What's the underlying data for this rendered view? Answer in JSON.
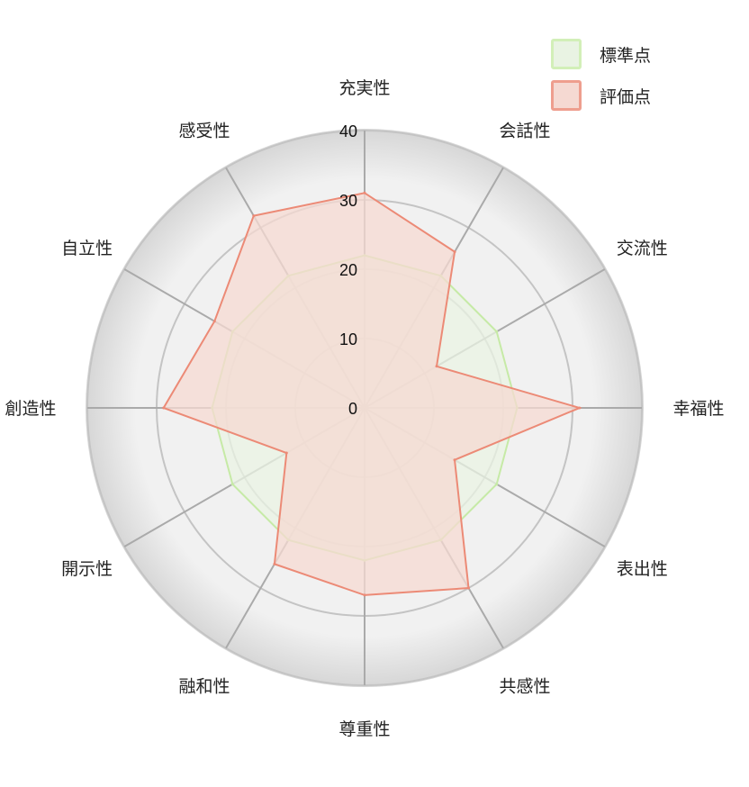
{
  "chart_data": {
    "type": "radar",
    "axes": [
      "充実性",
      "会話性",
      "交流性",
      "幸福性",
      "表出性",
      "共感性",
      "尊重性",
      "融和性",
      "開示性",
      "創造性",
      "自立性",
      "感受性"
    ],
    "rlim": [
      0,
      40
    ],
    "ticks": [
      0,
      10,
      20,
      30,
      40
    ],
    "tick_labels": [
      "0",
      "10",
      "20",
      "30",
      "40"
    ],
    "grid": true,
    "legend_position": "top-right",
    "series": [
      {
        "name": "標準点",
        "values": [
          22,
          22,
          22,
          22,
          22,
          22,
          22,
          22,
          22,
          22,
          22,
          22
        ],
        "fill": "#e9f3e3",
        "stroke": "#c6eaa6"
      },
      {
        "name": "評価点",
        "values": [
          31,
          26,
          12,
          31,
          15,
          30,
          27,
          26,
          13,
          29,
          25,
          32
        ],
        "fill": "#f5d9d2",
        "stroke": "#ec8a76"
      }
    ]
  }
}
